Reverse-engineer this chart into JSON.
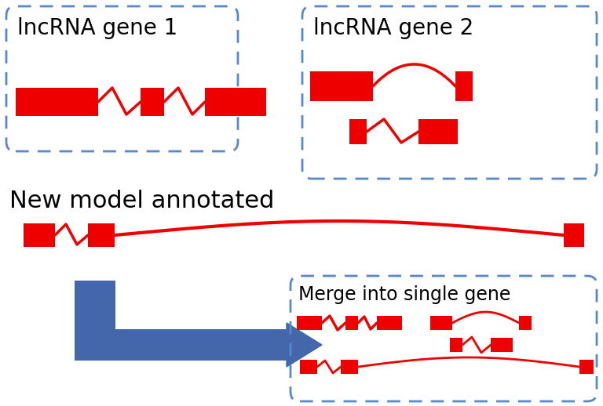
{
  "bg_color": "#ffffff",
  "red": "#ee0000",
  "blue_arrow": "#4466aa",
  "dashed_box_color": "#5588cc",
  "text_color": "#000000",
  "label1": "lncRNA gene 1",
  "label2": "lncRNA gene 2",
  "label3": "New model annotated",
  "label4": "Merge into single gene",
  "fontsize_large": 20,
  "fontsize_label": 17,
  "lw": 2.5,
  "fig_w": 7.68,
  "fig_h": 5.18,
  "dpi": 100
}
